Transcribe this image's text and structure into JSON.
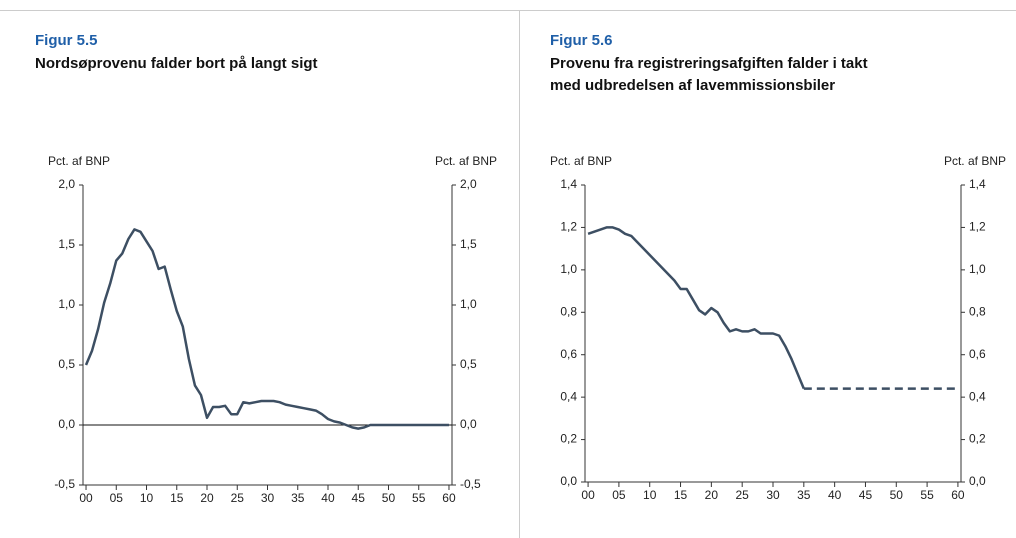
{
  "chart_data": [
    {
      "type": "line",
      "title": "Figur 5.5",
      "subtitle": [
        "Nordsøprovenu falder bort på langt sigt"
      ],
      "ylabel": "Pct. af BNP",
      "y2label": "Pct. af BNP",
      "x": [
        0,
        1,
        2,
        3,
        4,
        5,
        6,
        7,
        8,
        9,
        10,
        11,
        12,
        13,
        14,
        15,
        16,
        17,
        18,
        19,
        20,
        21,
        22,
        23,
        24,
        25,
        26,
        27,
        28,
        29,
        30,
        31,
        32,
        33,
        34,
        35,
        36,
        37,
        38,
        39,
        40,
        41,
        42,
        43,
        44,
        45,
        46,
        47,
        48,
        49,
        50,
        51,
        52,
        53,
        54,
        55,
        56,
        57,
        58,
        59,
        60
      ],
      "series": [
        {
          "color": "#3d4f63",
          "values": [
            0.5,
            0.62,
            0.8,
            1.02,
            1.18,
            1.37,
            1.43,
            1.55,
            1.63,
            1.61,
            1.53,
            1.45,
            1.3,
            1.32,
            1.13,
            0.95,
            0.82,
            0.55,
            0.33,
            0.25,
            0.06,
            0.15,
            0.15,
            0.16,
            0.09,
            0.09,
            0.19,
            0.18,
            0.19,
            0.2,
            0.2,
            0.2,
            0.19,
            0.17,
            0.16,
            0.15,
            0.14,
            0.13,
            0.12,
            0.09,
            0.05,
            0.03,
            0.02,
            0.0,
            -0.02,
            -0.03,
            -0.02,
            0.0,
            0.0,
            0.0,
            0.0,
            0.0,
            0.0,
            0.0,
            0.0,
            0.0,
            0.0,
            0.0,
            0.0,
            0.0,
            0.0
          ]
        }
      ],
      "xlim": [
        -0.5,
        60.5
      ],
      "xticks": [
        {
          "value": 0,
          "label": "00"
        },
        {
          "value": 5,
          "label": "05"
        },
        10,
        15,
        20,
        25,
        30,
        35,
        40,
        45,
        50,
        55,
        60
      ],
      "ylim": [
        -0.5,
        2.0
      ],
      "yticks": [
        {
          "value": -0.5,
          "label": "-0,5"
        },
        {
          "value": 0,
          "label": "0,0"
        },
        {
          "value": 0.5,
          "label": "0,5"
        },
        {
          "value": 1,
          "label": "1,0"
        },
        {
          "value": 1.5,
          "label": "1,5"
        },
        {
          "value": 2,
          "label": "2,0"
        }
      ],
      "y2lim": [
        -0.5,
        2.0
      ],
      "y2ticks": [
        {
          "value": -0.5,
          "label": "-0,5"
        },
        {
          "value": 0,
          "label": "0,0"
        },
        {
          "value": 0.5,
          "label": "0,5"
        },
        {
          "value": 1,
          "label": "1,0"
        },
        {
          "value": 1.5,
          "label": "1,5"
        },
        {
          "value": 2,
          "label": "2,0"
        }
      ],
      "zero_line": true
    },
    {
      "type": "line",
      "title": "Figur 5.6",
      "subtitle": [
        "Provenu fra registreringsafgiften falder i takt",
        "med udbredelsen af lavemmissionsbiler"
      ],
      "ylabel": "Pct. af BNP",
      "y2label": "Pct. af BNP",
      "x": [
        0,
        1,
        2,
        3,
        4,
        5,
        6,
        7,
        8,
        9,
        10,
        11,
        12,
        13,
        14,
        15,
        16,
        17,
        18,
        19,
        20,
        21,
        22,
        23,
        24,
        25,
        26,
        27,
        28,
        29,
        30,
        31,
        32,
        33,
        34,
        35,
        36,
        37,
        38,
        39,
        40,
        41,
        42,
        43,
        44,
        45,
        46,
        47,
        48,
        49,
        50,
        51,
        52,
        53,
        54,
        55,
        56,
        57,
        58,
        59,
        60
      ],
      "series": [
        {
          "color": "#3d4f63",
          "values": [
            1.17,
            1.18,
            1.19,
            1.2,
            1.2,
            1.19,
            1.17,
            1.16,
            1.13,
            1.1,
            1.07,
            1.04,
            1.01,
            0.98,
            0.95,
            0.91,
            0.91,
            0.86,
            0.81,
            0.79,
            0.82,
            0.8,
            0.75,
            0.71,
            0.72,
            0.71,
            0.71,
            0.72,
            0.7,
            0.7,
            0.7,
            0.69,
            0.64,
            0.58,
            0.51,
            0.44,
            null,
            null,
            null,
            null,
            null,
            null,
            null,
            null,
            null,
            null,
            null,
            null,
            null,
            null,
            null,
            null,
            null,
            null,
            null,
            null,
            null,
            null,
            null,
            null,
            null
          ]
        },
        {
          "color": "#3d4f63",
          "dashed": true,
          "values": [
            null,
            null,
            null,
            null,
            null,
            null,
            null,
            null,
            null,
            null,
            null,
            null,
            null,
            null,
            null,
            null,
            null,
            null,
            null,
            null,
            null,
            null,
            null,
            null,
            null,
            null,
            null,
            null,
            null,
            null,
            null,
            null,
            null,
            null,
            null,
            0.44,
            0.44,
            0.44,
            0.44,
            0.44,
            0.44,
            0.44,
            0.44,
            0.44,
            0.44,
            0.44,
            0.44,
            0.44,
            0.44,
            0.44,
            0.44,
            0.44,
            0.44,
            0.44,
            0.44,
            0.44,
            0.44,
            0.44,
            0.44,
            0.44,
            0.44
          ]
        }
      ],
      "xlim": [
        -0.5,
        60.5
      ],
      "xticks": [
        {
          "value": 0,
          "label": "00"
        },
        {
          "value": 5,
          "label": "05"
        },
        10,
        15,
        20,
        25,
        30,
        35,
        40,
        45,
        50,
        55,
        60
      ],
      "ylim": [
        0,
        1.4
      ],
      "yticks": [
        {
          "value": 0,
          "label": "0,0"
        },
        {
          "value": 0.2,
          "label": "0,2"
        },
        {
          "value": 0.4,
          "label": "0,4"
        },
        {
          "value": 0.6,
          "label": "0,6"
        },
        {
          "value": 0.8,
          "label": "0,8"
        },
        {
          "value": 1,
          "label": "1,0"
        },
        {
          "value": 1.2,
          "label": "1,2"
        },
        {
          "value": 1.4,
          "label": "1,4"
        }
      ],
      "y2lim": [
        0,
        1.4
      ],
      "y2ticks": [
        {
          "value": 0,
          "label": "0,0"
        },
        {
          "value": 0.2,
          "label": "0,2"
        },
        {
          "value": 0.4,
          "label": "0,4"
        },
        {
          "value": 0.6,
          "label": "0,6"
        },
        {
          "value": 0.8,
          "label": "0,8"
        },
        {
          "value": 1,
          "label": "1,0"
        },
        {
          "value": 1.2,
          "label": "1,2"
        },
        {
          "value": 1.4,
          "label": "1,4"
        }
      ],
      "zero_line": false
    }
  ]
}
